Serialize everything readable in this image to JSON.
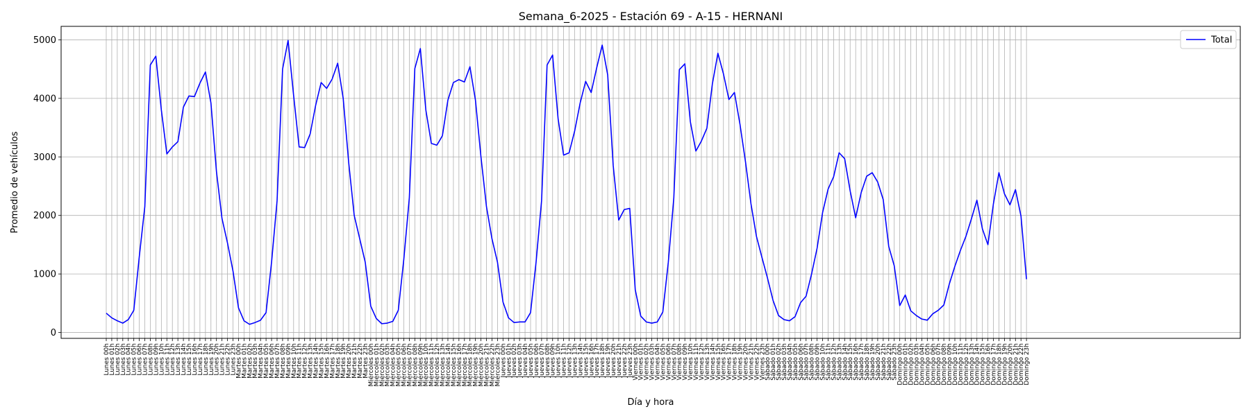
{
  "chart_data": {
    "type": "line",
    "title": "Semana_6-2025 - Estación 69 - A-15  - HERNANI",
    "xlabel": "Día y hora",
    "ylabel": "Promedio de vehículos",
    "ylim": [
      -100,
      5230
    ],
    "yticks": [
      0,
      1000,
      2000,
      3000,
      4000,
      5000
    ],
    "grid": true,
    "legend": "top-right",
    "color": "#0000ff",
    "days": [
      "Lunes",
      "Martes",
      "Miércoles",
      "Jueves",
      "Viernes",
      "Sábado",
      "Domingo"
    ],
    "categories": [
      "Lunes 00h",
      "Lunes 01h",
      "Lunes 02h",
      "Lunes 03h",
      "Lunes 04h",
      "Lunes 05h",
      "Lunes 06h",
      "Lunes 07h",
      "Lunes 08h",
      "Lunes 09h",
      "Lunes 10h",
      "Lunes 11h",
      "Lunes 12h",
      "Lunes 13h",
      "Lunes 14h",
      "Lunes 15h",
      "Lunes 16h",
      "Lunes 17h",
      "Lunes 18h",
      "Lunes 19h",
      "Lunes 20h",
      "Lunes 21h",
      "Lunes 22h",
      "Lunes 23h",
      "Martes 00h",
      "Martes 01h",
      "Martes 02h",
      "Martes 03h",
      "Martes 04h",
      "Martes 05h",
      "Martes 06h",
      "Martes 07h",
      "Martes 08h",
      "Martes 09h",
      "Martes 10h",
      "Martes 11h",
      "Martes 12h",
      "Martes 13h",
      "Martes 14h",
      "Martes 15h",
      "Martes 16h",
      "Martes 17h",
      "Martes 18h",
      "Martes 19h",
      "Martes 20h",
      "Martes 21h",
      "Martes 22h",
      "Martes 23h",
      "Miércoles 00h",
      "Miércoles 01h",
      "Miércoles 02h",
      "Miércoles 03h",
      "Miércoles 04h",
      "Miércoles 05h",
      "Miércoles 06h",
      "Miércoles 07h",
      "Miércoles 08h",
      "Miércoles 09h",
      "Miércoles 10h",
      "Miércoles 11h",
      "Miércoles 12h",
      "Miércoles 13h",
      "Miércoles 14h",
      "Miércoles 15h",
      "Miércoles 16h",
      "Miércoles 17h",
      "Miércoles 18h",
      "Miércoles 19h",
      "Miércoles 20h",
      "Miércoles 21h",
      "Miércoles 22h",
      "Miércoles 23h",
      "Jueves 00h",
      "Jueves 01h",
      "Jueves 02h",
      "Jueves 03h",
      "Jueves 04h",
      "Jueves 05h",
      "Jueves 06h",
      "Jueves 07h",
      "Jueves 08h",
      "Jueves 09h",
      "Jueves 10h",
      "Jueves 11h",
      "Jueves 12h",
      "Jueves 13h",
      "Jueves 14h",
      "Jueves 15h",
      "Jueves 16h",
      "Jueves 17h",
      "Jueves 18h",
      "Jueves 19h",
      "Jueves 20h",
      "Jueves 21h",
      "Jueves 22h",
      "Jueves 23h",
      "Viernes 00h",
      "Viernes 01h",
      "Viernes 02h",
      "Viernes 03h",
      "Viernes 04h",
      "Viernes 05h",
      "Viernes 06h",
      "Viernes 07h",
      "Viernes 08h",
      "Viernes 09h",
      "Viernes 10h",
      "Viernes 11h",
      "Viernes 12h",
      "Viernes 13h",
      "Viernes 14h",
      "Viernes 15h",
      "Viernes 16h",
      "Viernes 17h",
      "Viernes 18h",
      "Viernes 19h",
      "Viernes 20h",
      "Viernes 21h",
      "Viernes 22h",
      "Viernes 23h",
      "Sábado 00h",
      "Sábado 01h",
      "Sábado 02h",
      "Sábado 03h",
      "Sábado 04h",
      "Sábado 05h",
      "Sábado 06h",
      "Sábado 07h",
      "Sábado 08h",
      "Sábado 09h",
      "Sábado 10h",
      "Sábado 11h",
      "Sábado 12h",
      "Sábado 13h",
      "Sábado 14h",
      "Sábado 15h",
      "Sábado 16h",
      "Sábado 17h",
      "Sábado 18h",
      "Sábado 19h",
      "Sábado 20h",
      "Sábado 21h",
      "Sábado 22h",
      "Sábado 23h",
      "Domingo 00h",
      "Domingo 01h",
      "Domingo 02h",
      "Domingo 03h",
      "Domingo 04h",
      "Domingo 05h",
      "Domingo 06h",
      "Domingo 07h",
      "Domingo 08h",
      "Domingo 09h",
      "Domingo 10h",
      "Domingo 11h",
      "Domingo 12h",
      "Domingo 13h",
      "Domingo 14h",
      "Domingo 15h",
      "Domingo 16h",
      "Domingo 17h",
      "Domingo 18h",
      "Domingo 19h",
      "Domingo 20h",
      "Domingo 21h",
      "Domingo 22h",
      "Domingo 23h"
    ],
    "series": [
      {
        "name": "Total",
        "values": [
          330,
          250,
          200,
          160,
          220,
          380,
          1300,
          2150,
          4570,
          4720,
          3800,
          3050,
          3170,
          3260,
          3850,
          4040,
          4030,
          4260,
          4450,
          3920,
          2750,
          1950,
          1530,
          1050,
          420,
          200,
          140,
          170,
          210,
          340,
          1200,
          2250,
          4500,
          4990,
          4050,
          3170,
          3160,
          3390,
          3880,
          4270,
          4170,
          4330,
          4600,
          4000,
          2900,
          2000,
          1600,
          1200,
          450,
          240,
          150,
          160,
          190,
          380,
          1250,
          2300,
          4510,
          4850,
          3800,
          3230,
          3200,
          3360,
          3970,
          4270,
          4320,
          4280,
          4540,
          3970,
          3000,
          2150,
          1600,
          1200,
          520,
          250,
          170,
          180,
          180,
          340,
          1200,
          2250,
          4570,
          4740,
          3650,
          3030,
          3070,
          3440,
          3920,
          4290,
          4100,
          4520,
          4910,
          4400,
          2850,
          1920,
          2100,
          2120,
          730,
          280,
          180,
          160,
          180,
          350,
          1200,
          2300,
          4490,
          4590,
          3600,
          3100,
          3270,
          3490,
          4250,
          4770,
          4420,
          3980,
          4100,
          3560,
          2920,
          2200,
          1640,
          1280,
          930,
          550,
          290,
          220,
          200,
          270,
          510,
          620,
          1000,
          1440,
          2050,
          2450,
          2660,
          3070,
          2970,
          2420,
          1960,
          2390,
          2670,
          2730,
          2570,
          2270,
          1470,
          1140,
          460,
          640,
          370,
          290,
          230,
          210,
          320,
          380,
          470,
          830,
          1130,
          1400,
          1640,
          1940,
          2260,
          1770,
          1500,
          2200,
          2730,
          2370,
          2180,
          2440,
          1990,
          910
        ]
      }
    ]
  }
}
